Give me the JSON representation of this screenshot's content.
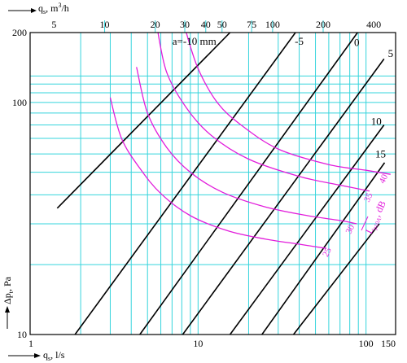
{
  "chart_data": {
    "type": "line",
    "xlabel_bottom": "q",
    "xlabel_bottom_sub": "s",
    "xlabel_bottom_unit": ", l/s",
    "xlabel_top": "q",
    "xlabel_top_sub": "s",
    "xlabel_top_unit": ", m",
    "xlabel_top_unit_sup": "3",
    "xlabel_top_unit_end": "/h",
    "ylabel": "Δp",
    "ylabel_sub": "t",
    "ylabel_unit": ", Pa",
    "x_scale": "log",
    "y_scale": "log",
    "xlim": [
      1,
      150
    ],
    "ylim": [
      10,
      200
    ],
    "grid": true,
    "x_ticks_bottom": [
      {
        "value": 1,
        "label": "1"
      },
      {
        "value": 10,
        "label": "10"
      },
      {
        "value": 100,
        "label": "100"
      },
      {
        "value": 150,
        "label": "150"
      }
    ],
    "x_ticks_top": [
      {
        "value": 5,
        "label": "5"
      },
      {
        "value": 10,
        "label": "10"
      },
      {
        "value": 20,
        "label": "20"
      },
      {
        "value": 30,
        "label": "30"
      },
      {
        "value": 40,
        "label": "40"
      },
      {
        "value": 50,
        "label": "50"
      },
      {
        "value": 75,
        "label": "75"
      },
      {
        "value": 100,
        "label": "100"
      },
      {
        "value": 200,
        "label": "200"
      },
      {
        "value": 400,
        "label": "400"
      }
    ],
    "y_ticks": [
      {
        "value": 10,
        "label": "10"
      },
      {
        "value": 100,
        "label": "100"
      },
      {
        "value": 200,
        "label": "200"
      }
    ],
    "x_grid_lines": [
      2,
      3,
      4,
      5,
      6,
      7,
      8,
      9,
      10,
      20,
      30,
      40,
      50,
      60,
      70,
      80,
      90,
      100
    ],
    "y_grid_lines": [
      20,
      30,
      40,
      50,
      60,
      70,
      80,
      90,
      100,
      110,
      120,
      130
    ],
    "series": [
      {
        "name": "a=-10 mm",
        "color": "#000000",
        "x": [
          1.45,
          15.5
        ],
        "y": [
          35,
          200
        ],
        "label_at": [
          9.5,
          177
        ]
      },
      {
        "name": "-5",
        "color": "#000000",
        "x": [
          1.85,
          38
        ],
        "y": [
          10,
          200
        ],
        "label_at": [
          40,
          177
        ]
      },
      {
        "name": "0",
        "color": "#000000",
        "x": [
          4.5,
          89
        ],
        "y": [
          10,
          200
        ],
        "label_at": [
          88,
          175
        ]
      },
      {
        "name": "5",
        "color": "#000000",
        "x": [
          8.1,
          128
        ],
        "y": [
          10,
          154
        ],
        "label_at": [
          140,
          157
        ]
      },
      {
        "name": "10",
        "color": "#000000",
        "x": [
          15.5,
          128
        ],
        "y": [
          10,
          80
        ],
        "label_at": [
          115,
          80
        ]
      },
      {
        "name": "15",
        "color": "#000000",
        "x": [
          24,
          129
        ],
        "y": [
          10,
          55
        ],
        "label_at": [
          122,
          58
        ]
      },
      {
        "name": "",
        "color": "#000000",
        "x": [
          37,
          120
        ],
        "y": [
          10,
          30
        ],
        "label_at": null
      }
    ],
    "iso_curves": [
      {
        "name": "25",
        "x": [
          3,
          3.5,
          4.5,
          6,
          9,
          15,
          25,
          40,
          58
        ],
        "y": [
          105,
          70,
          52,
          40.5,
          32.5,
          28,
          25.8,
          24.5,
          23.5
        ],
        "label_at": [
          59,
          21.5
        ]
      },
      {
        "name": "30",
        "x": [
          4.3,
          5,
          6.5,
          9,
          14,
          25,
          45,
          70,
          88
        ],
        "y": [
          142,
          90,
          64,
          50,
          41,
          35.5,
          32.5,
          31,
          30
        ],
        "label_at": [
          81,
          27
        ]
      },
      {
        "name": "35",
        "x": [
          5.7,
          6.5,
          8.5,
          12,
          20,
          40,
          70,
          105
        ],
        "y": [
          210,
          135,
          95,
          72,
          57,
          48,
          44,
          41.5
        ],
        "label_at": [
          104,
          37
        ]
      },
      {
        "name": "40",
        "x": [
          8.5,
          10,
          13,
          18,
          30,
          60,
          100,
          140
        ],
        "y": [
          200,
          140,
          100,
          80,
          63,
          54,
          51,
          49
        ],
        "label_at": [
          128,
          44.5
        ]
      }
    ],
    "annotation": {
      "text": "L",
      "sub": "p10A",
      "unit": ", dB"
    }
  }
}
